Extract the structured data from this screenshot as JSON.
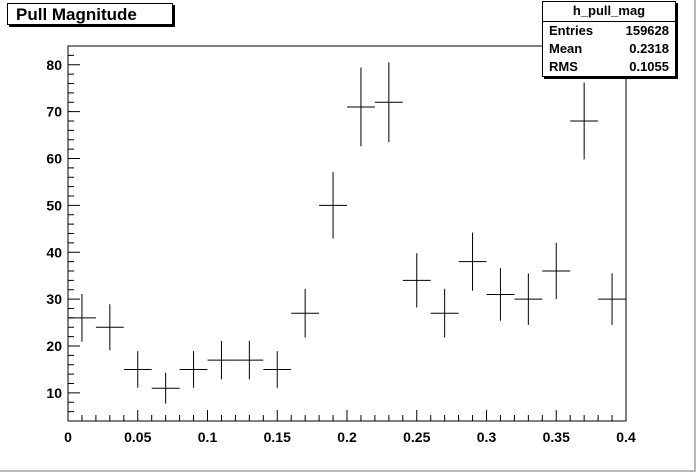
{
  "title": "Pull Magnitude",
  "stats": {
    "name": "h_pull_mag",
    "rows": [
      {
        "label": "Entries",
        "value": "159628"
      },
      {
        "label": "Mean",
        "value": "0.2318"
      },
      {
        "label": "RMS",
        "value": "0.1055"
      }
    ]
  },
  "chart_data": {
    "type": "scatter",
    "title": "Pull Magnitude",
    "xlabel": "",
    "ylabel": "",
    "xlim": [
      0,
      0.4
    ],
    "ylim": [
      4,
      84
    ],
    "x_ticks": [
      0,
      0.05,
      0.1,
      0.15,
      0.2,
      0.25,
      0.3,
      0.35,
      0.4
    ],
    "x_tick_labels": [
      "0",
      "0.05",
      "0.1",
      "0.15",
      "0.2",
      "0.25",
      "0.3",
      "0.35",
      "0.4"
    ],
    "y_ticks": [
      10,
      20,
      30,
      40,
      50,
      60,
      70,
      80
    ],
    "y_tick_labels": [
      "10",
      "20",
      "30",
      "40",
      "50",
      "60",
      "70",
      "80"
    ],
    "bin_width": 0.02,
    "grid": false,
    "points": [
      {
        "x": 0.01,
        "y": 26,
        "err": 5.1
      },
      {
        "x": 0.03,
        "y": 24,
        "err": 4.9
      },
      {
        "x": 0.05,
        "y": 15,
        "err": 3.9
      },
      {
        "x": 0.07,
        "y": 11,
        "err": 3.3
      },
      {
        "x": 0.09,
        "y": 15,
        "err": 3.9
      },
      {
        "x": 0.11,
        "y": 17,
        "err": 4.1
      },
      {
        "x": 0.13,
        "y": 17,
        "err": 4.1
      },
      {
        "x": 0.15,
        "y": 15,
        "err": 3.9
      },
      {
        "x": 0.17,
        "y": 27,
        "err": 5.2
      },
      {
        "x": 0.19,
        "y": 50,
        "err": 7.1
      },
      {
        "x": 0.21,
        "y": 71,
        "err": 8.4
      },
      {
        "x": 0.23,
        "y": 72,
        "err": 8.5
      },
      {
        "x": 0.25,
        "y": 34,
        "err": 5.8
      },
      {
        "x": 0.27,
        "y": 27,
        "err": 5.2
      },
      {
        "x": 0.29,
        "y": 38,
        "err": 6.2
      },
      {
        "x": 0.31,
        "y": 31,
        "err": 5.6
      },
      {
        "x": 0.33,
        "y": 30,
        "err": 5.5
      },
      {
        "x": 0.35,
        "y": 36,
        "err": 6.0
      },
      {
        "x": 0.37,
        "y": 68,
        "err": 8.2
      },
      {
        "x": 0.39,
        "y": 30,
        "err": 5.5
      }
    ]
  }
}
